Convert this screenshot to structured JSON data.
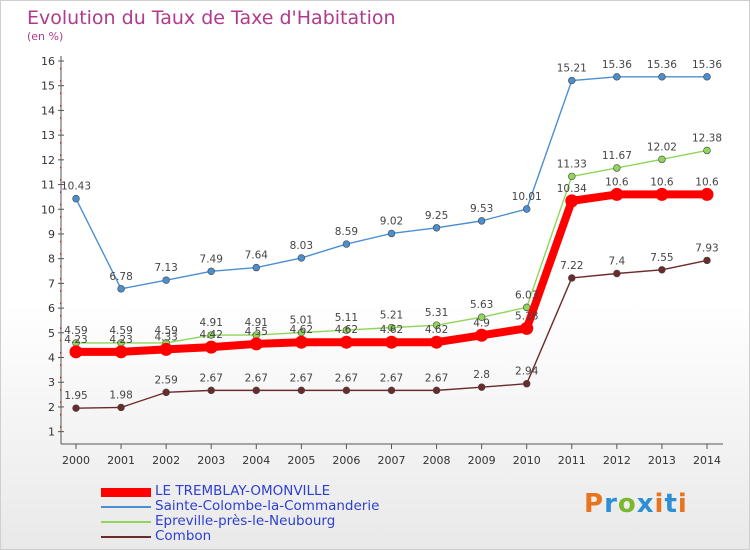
{
  "header": {
    "title": "Evolution du Taux de Taxe d'Habitation",
    "unit": "(en %)"
  },
  "logo": {
    "text": "Proxiti",
    "colors": [
      "#e9741f",
      "#2f8fd4",
      "#7ab92f",
      "#2f8fd4",
      "#e9741f",
      "#2f8fd4",
      "#e9741f"
    ]
  },
  "chart_data": {
    "type": "line",
    "title": "Evolution du Taux de Taxe d'Habitation",
    "ylabel": "(en %)",
    "xlabel": "",
    "x": [
      "2000",
      "2001",
      "2002",
      "2003",
      "2004",
      "2005",
      "2006",
      "2007",
      "2008",
      "2009",
      "2010",
      "2011",
      "2012",
      "2013",
      "2014"
    ],
    "ylim": [
      0.5,
      16
    ],
    "yticks": [
      "1",
      "2",
      "3",
      "4",
      "5",
      "6",
      "7",
      "8",
      "9",
      "10",
      "11",
      "12",
      "13",
      "14",
      "15",
      "16"
    ],
    "grid": false,
    "legend": "bottom-left",
    "series": [
      {
        "name": "Sainte-Colombe-la-Commanderie",
        "color": "#4b8fd0",
        "values": [
          10.43,
          6.78,
          7.13,
          7.49,
          7.64,
          8.03,
          8.59,
          9.02,
          9.25,
          9.53,
          10.01,
          15.21,
          15.36,
          15.36,
          15.36
        ],
        "labels": [
          "10.43",
          "6.78",
          "7.13",
          "7.49",
          "7.64",
          "8.03",
          "8.59",
          "9.02",
          "9.25",
          "9.53",
          "10.01",
          "15.21",
          "15.36",
          "15.36",
          "15.36"
        ]
      },
      {
        "name": "Epreville-près-le-Neubourg",
        "color": "#8fd65a",
        "values": [
          4.59,
          4.59,
          4.59,
          4.91,
          4.91,
          5.01,
          5.11,
          5.21,
          5.31,
          5.63,
          6.03,
          11.33,
          11.67,
          12.02,
          12.38
        ],
        "labels": [
          "4.59",
          "4.59",
          "4.59",
          "4.91",
          "4.91",
          "5.01",
          "5.11",
          "5.21",
          "5.31",
          "5.63",
          "6.03",
          "11.33",
          "11.67",
          "12.02",
          "12.38"
        ]
      },
      {
        "name": "Combon",
        "color": "#6b2b2b",
        "values": [
          1.95,
          1.98,
          2.59,
          2.67,
          2.67,
          2.67,
          2.67,
          2.67,
          2.67,
          2.8,
          2.94,
          7.22,
          7.4,
          7.55,
          7.93
        ],
        "labels": [
          "1.95",
          "1.98",
          "2.59",
          "2.67",
          "2.67",
          "2.67",
          "2.67",
          "2.67",
          "2.67",
          "2.8",
          "2.94",
          "7.22",
          "7.4",
          "7.55",
          "7.93"
        ]
      },
      {
        "name": "LE TREMBLAY-OMONVILLE",
        "color": "#ff0000",
        "values": [
          4.23,
          4.23,
          4.33,
          4.42,
          4.55,
          4.62,
          4.62,
          4.62,
          4.62,
          4.9,
          5.18,
          10.34,
          10.6,
          10.6,
          10.6
        ],
        "labels": [
          "4.23",
          "4.23",
          "4.33",
          "4.42",
          "4.55",
          "4.62",
          "4.62",
          "4.62",
          "4.62",
          "4.9",
          "5.18",
          "10.34",
          "10.6",
          "10.6",
          "10.6"
        ]
      }
    ],
    "legend_order": [
      "LE TREMBLAY-OMONVILLE",
      "Sainte-Colombe-la-Commanderie",
      "Epreville-près-le-Neubourg",
      "Combon"
    ]
  }
}
